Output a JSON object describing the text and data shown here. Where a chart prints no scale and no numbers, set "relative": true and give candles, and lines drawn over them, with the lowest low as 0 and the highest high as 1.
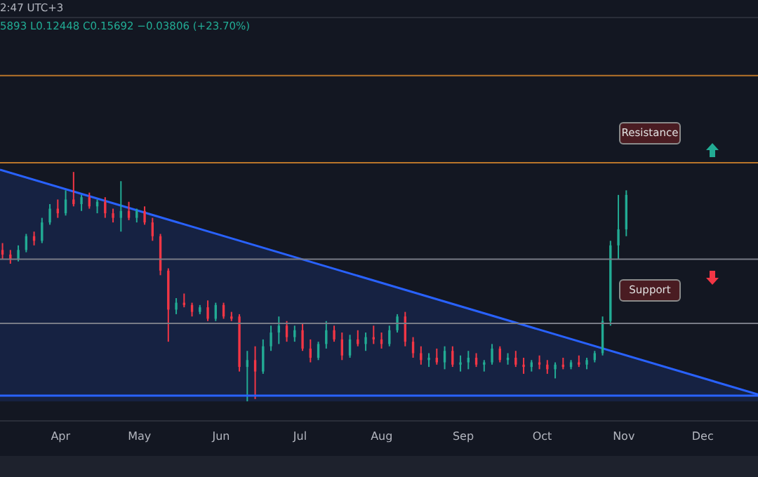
{
  "chart_data": {
    "type": "candlestick",
    "relative": true,
    "x": [
      "--03-10",
      "--03-13",
      "--03-16",
      "--03-19",
      "--03-22",
      "--03-25",
      "--03-28",
      "--03-31",
      "--04-03",
      "--04-06",
      "--04-09",
      "--04-12",
      "--04-15",
      "--04-18",
      "--04-21",
      "--04-24",
      "--04-27",
      "--04-30",
      "--05-03",
      "--05-06",
      "--05-09",
      "--05-12",
      "--05-15",
      "--05-18",
      "--05-21",
      "--05-24",
      "--05-27",
      "--05-30",
      "--06-02",
      "--06-05",
      "--06-08",
      "--06-11",
      "--06-14",
      "--06-17",
      "--06-20",
      "--06-23",
      "--06-26",
      "--06-29",
      "--07-02",
      "--07-05",
      "--07-08",
      "--07-11",
      "--07-14",
      "--07-17",
      "--07-20",
      "--07-23",
      "--07-26",
      "--07-29",
      "--08-01",
      "--08-04",
      "--08-07",
      "--08-10",
      "--08-13",
      "--08-16",
      "--08-19",
      "--08-22",
      "--08-25",
      "--08-28",
      "--08-31",
      "--09-03",
      "--09-06",
      "--09-09",
      "--09-12",
      "--09-15",
      "--09-18",
      "--09-21",
      "--09-24",
      "--09-27",
      "--09-30",
      "--10-03",
      "--10-06",
      "--10-09",
      "--10-12",
      "--10-15",
      "--10-18",
      "--10-21",
      "--10-24",
      "--10-27",
      "--10-30",
      "--11-02"
    ],
    "ohlc": [
      [
        0.66,
        0.69,
        0.62,
        0.64
      ],
      [
        0.64,
        0.66,
        0.6,
        0.62
      ],
      [
        0.62,
        0.68,
        0.61,
        0.66
      ],
      [
        0.66,
        0.73,
        0.65,
        0.72
      ],
      [
        0.72,
        0.74,
        0.68,
        0.7
      ],
      [
        0.7,
        0.8,
        0.69,
        0.78
      ],
      [
        0.78,
        0.86,
        0.77,
        0.84
      ],
      [
        0.84,
        0.88,
        0.8,
        0.82
      ],
      [
        0.82,
        0.92,
        0.81,
        0.88
      ],
      [
        0.88,
        1.0,
        0.85,
        0.86
      ],
      [
        0.86,
        0.9,
        0.83,
        0.89
      ],
      [
        0.89,
        0.91,
        0.84,
        0.85
      ],
      [
        0.85,
        0.88,
        0.82,
        0.87
      ],
      [
        0.87,
        0.89,
        0.8,
        0.82
      ],
      [
        0.82,
        0.84,
        0.78,
        0.8
      ],
      [
        0.8,
        0.96,
        0.74,
        0.83
      ],
      [
        0.83,
        0.87,
        0.79,
        0.8
      ],
      [
        0.8,
        0.84,
        0.78,
        0.83
      ],
      [
        0.83,
        0.85,
        0.77,
        0.78
      ],
      [
        0.78,
        0.8,
        0.7,
        0.72
      ],
      [
        0.72,
        0.73,
        0.55,
        0.57
      ],
      [
        0.57,
        0.58,
        0.26,
        0.4
      ],
      [
        0.4,
        0.45,
        0.38,
        0.43
      ],
      [
        0.43,
        0.47,
        0.41,
        0.42
      ],
      [
        0.42,
        0.43,
        0.37,
        0.39
      ],
      [
        0.39,
        0.42,
        0.38,
        0.41
      ],
      [
        0.41,
        0.44,
        0.35,
        0.36
      ],
      [
        0.36,
        0.43,
        0.35,
        0.42
      ],
      [
        0.42,
        0.43,
        0.36,
        0.37
      ],
      [
        0.37,
        0.39,
        0.35,
        0.36
      ],
      [
        0.37,
        0.38,
        0.13,
        0.15
      ],
      [
        0.15,
        0.22,
        0.0,
        0.18
      ],
      [
        0.18,
        0.24,
        0.01,
        0.13
      ],
      [
        0.13,
        0.27,
        0.12,
        0.24
      ],
      [
        0.24,
        0.33,
        0.22,
        0.3
      ],
      [
        0.3,
        0.37,
        0.25,
        0.33
      ],
      [
        0.33,
        0.35,
        0.26,
        0.28
      ],
      [
        0.28,
        0.33,
        0.26,
        0.31
      ],
      [
        0.31,
        0.34,
        0.22,
        0.23
      ],
      [
        0.23,
        0.27,
        0.17,
        0.19
      ],
      [
        0.19,
        0.26,
        0.18,
        0.25
      ],
      [
        0.25,
        0.35,
        0.23,
        0.31
      ],
      [
        0.31,
        0.33,
        0.26,
        0.27
      ],
      [
        0.27,
        0.3,
        0.18,
        0.2
      ],
      [
        0.2,
        0.29,
        0.19,
        0.27
      ],
      [
        0.27,
        0.31,
        0.24,
        0.25
      ],
      [
        0.25,
        0.3,
        0.22,
        0.28
      ],
      [
        0.28,
        0.33,
        0.25,
        0.27
      ],
      [
        0.27,
        0.3,
        0.23,
        0.25
      ],
      [
        0.25,
        0.33,
        0.24,
        0.31
      ],
      [
        0.31,
        0.38,
        0.3,
        0.37
      ],
      [
        0.37,
        0.39,
        0.24,
        0.26
      ],
      [
        0.26,
        0.28,
        0.19,
        0.21
      ],
      [
        0.21,
        0.24,
        0.16,
        0.18
      ],
      [
        0.18,
        0.21,
        0.15,
        0.19
      ],
      [
        0.19,
        0.23,
        0.16,
        0.17
      ],
      [
        0.17,
        0.24,
        0.14,
        0.22
      ],
      [
        0.22,
        0.24,
        0.15,
        0.16
      ],
      [
        0.16,
        0.2,
        0.13,
        0.17
      ],
      [
        0.17,
        0.22,
        0.14,
        0.19
      ],
      [
        0.19,
        0.21,
        0.15,
        0.16
      ],
      [
        0.16,
        0.18,
        0.13,
        0.17
      ],
      [
        0.17,
        0.25,
        0.16,
        0.23
      ],
      [
        0.23,
        0.24,
        0.17,
        0.18
      ],
      [
        0.18,
        0.21,
        0.16,
        0.19
      ],
      [
        0.19,
        0.22,
        0.15,
        0.16
      ],
      [
        0.16,
        0.19,
        0.12,
        0.15
      ],
      [
        0.15,
        0.18,
        0.13,
        0.17
      ],
      [
        0.17,
        0.2,
        0.14,
        0.16
      ],
      [
        0.16,
        0.18,
        0.12,
        0.14
      ],
      [
        0.14,
        0.17,
        0.1,
        0.16
      ],
      [
        0.16,
        0.19,
        0.14,
        0.15
      ],
      [
        0.15,
        0.18,
        0.14,
        0.17
      ],
      [
        0.17,
        0.2,
        0.15,
        0.16
      ],
      [
        0.16,
        0.19,
        0.14,
        0.18
      ],
      [
        0.18,
        0.22,
        0.17,
        0.21
      ],
      [
        0.21,
        0.37,
        0.2,
        0.35
      ],
      [
        0.35,
        0.7,
        0.33,
        0.68
      ],
      [
        0.68,
        0.9,
        0.62,
        0.75
      ],
      [
        0.75,
        0.92,
        0.72,
        0.9
      ]
    ],
    "colors": [
      "#f23645",
      "#f23645",
      "#22ab94",
      "#22ab94",
      "#f23645",
      "#22ab94",
      "#22ab94",
      "#f23645",
      "#22ab94",
      "#f23645",
      "#22ab94",
      "#f23645",
      "#22ab94",
      "#f23645",
      "#f23645",
      "#22ab94",
      "#f23645",
      "#22ab94",
      "#f23645",
      "#f23645",
      "#f23645",
      "#f23645",
      "#22ab94",
      "#f23645",
      "#f23645",
      "#22ab94",
      "#f23645",
      "#22ab94",
      "#f23645",
      "#f23645",
      "#f23645",
      "#22ab94",
      "#f23645",
      "#22ab94",
      "#22ab94",
      "#22ab94",
      "#f23645",
      "#22ab94",
      "#f23645",
      "#f23645",
      "#22ab94",
      "#22ab94",
      "#f23645",
      "#f23645",
      "#22ab94",
      "#f23645",
      "#22ab94",
      "#f23645",
      "#f23645",
      "#22ab94",
      "#22ab94",
      "#f23645",
      "#f23645",
      "#f23645",
      "#22ab94",
      "#f23645",
      "#22ab94",
      "#f23645",
      "#22ab94",
      "#22ab94",
      "#f23645",
      "#22ab94",
      "#22ab94",
      "#f23645",
      "#22ab94",
      "#f23645",
      "#f23645",
      "#22ab94",
      "#f23645",
      "#f23645",
      "#22ab94",
      "#f23645",
      "#22ab94",
      "#f23645",
      "#22ab94",
      "#22ab94",
      "#22ab94",
      "#22ab94",
      "#22ab94",
      "#22ab94"
    ],
    "series": [
      {
        "type": "area",
        "color": "#2962ff",
        "x": [
          "--03-09",
          "--12-22"
        ],
        "values": [
          1.01,
          0.03
        ]
      }
    ],
    "xlim": [
      "--03-09",
      "--12-22"
    ],
    "xticks": [
      {
        "value": "--04-01",
        "label": "Apr"
      },
      {
        "value": "--05-01",
        "label": "May"
      },
      {
        "value": "--06-01",
        "label": "Jun"
      },
      {
        "value": "--07-01",
        "label": "Jul"
      },
      {
        "value": "--08-01",
        "label": "Aug"
      },
      {
        "value": "--09-01",
        "label": "Sep"
      },
      {
        "value": "--10-01",
        "label": "Oct"
      },
      {
        "value": "--11-01",
        "label": "Nov"
      },
      {
        "value": "--12-01",
        "label": "Dec"
      }
    ],
    "ref_lines": [
      {
        "axis": "y",
        "value": 1.42,
        "color": "#b8752a"
      },
      {
        "axis": "y",
        "value": 1.04,
        "color": "#b8752a"
      },
      {
        "axis": "y",
        "value": 0.62,
        "color": "#787b86"
      },
      {
        "axis": "y",
        "value": 0.34,
        "color": "#787b86"
      },
      {
        "axis": "y",
        "value": 0.025,
        "color": "#2962ff"
      }
    ],
    "annotations": [
      "2:47 UTC+3",
      "5893 L0.12448 C0.15692 −0.03806 (+23.70%)",
      "Resistance",
      "Support"
    ]
  }
}
